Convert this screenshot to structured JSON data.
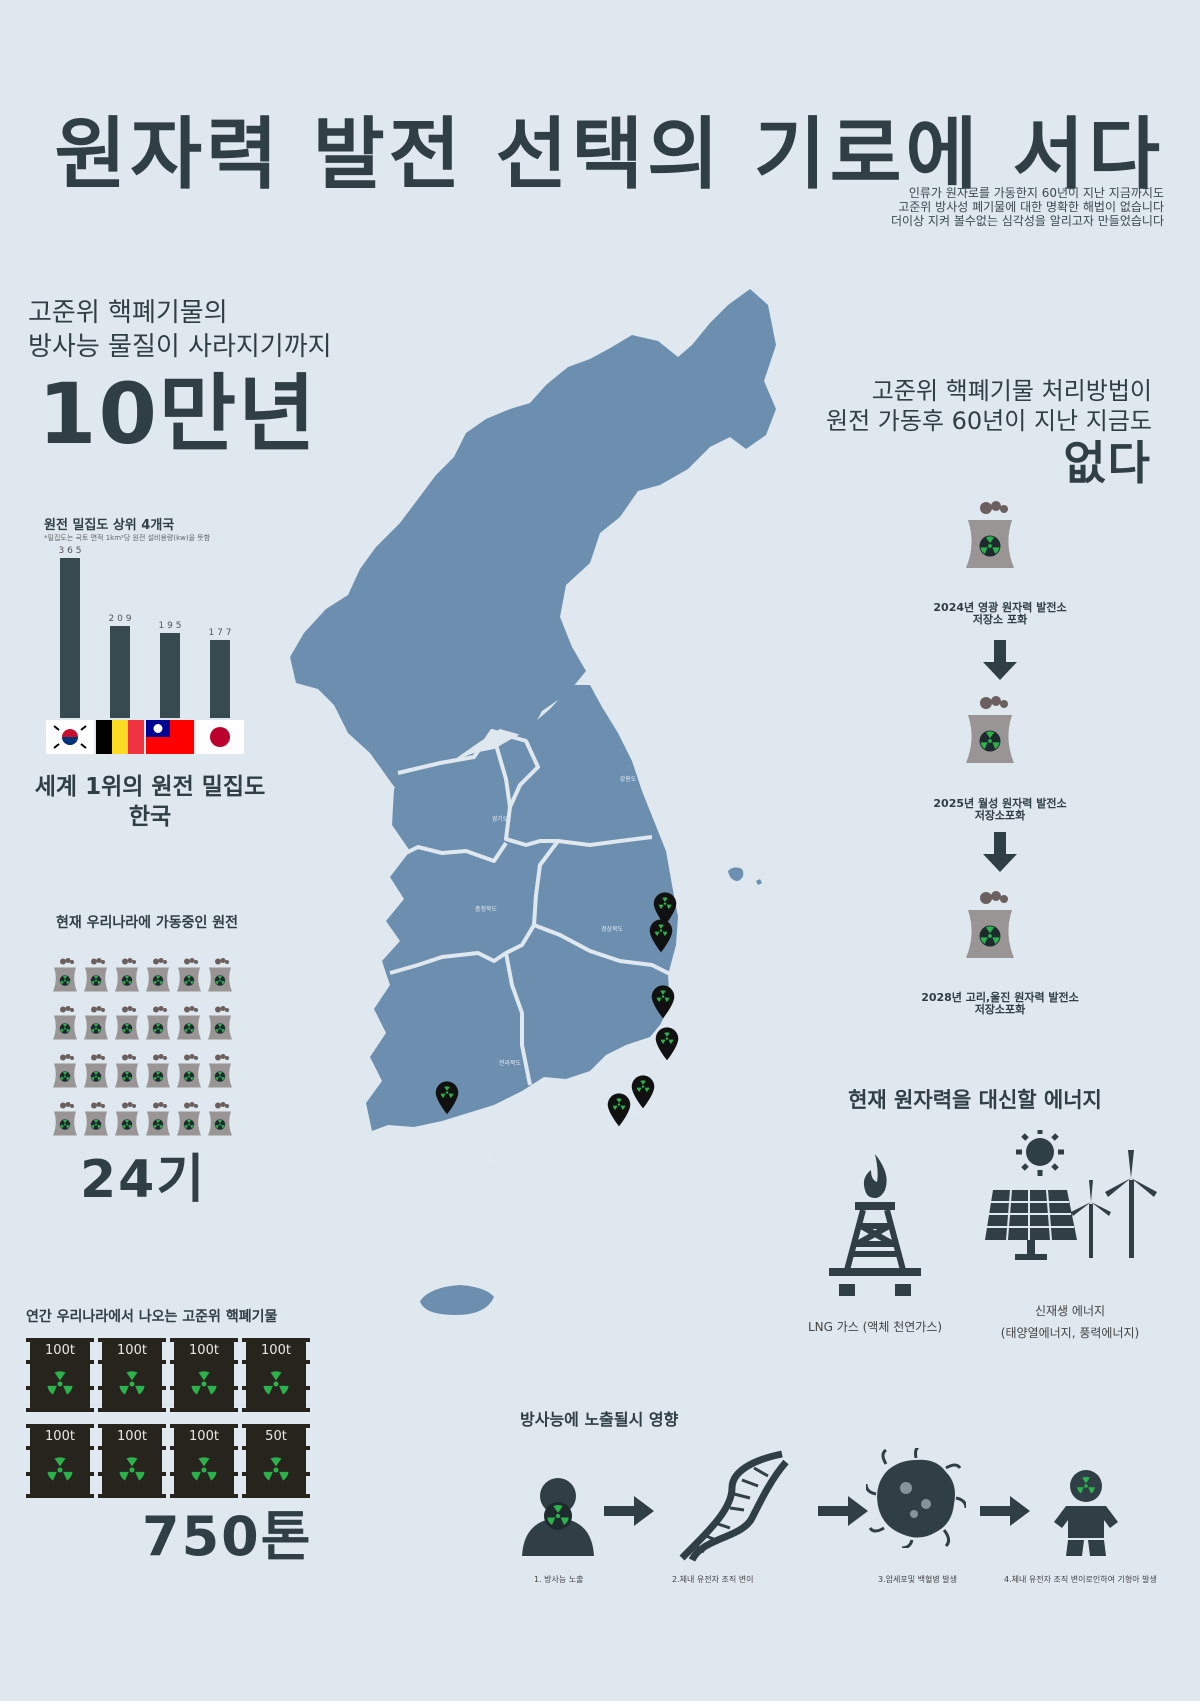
{
  "header": {
    "title": "원자력 발전 선택의 기로에 서다",
    "subtitle_lines": [
      "인류가 원자로를 가동한지 60년이 지난 지금까지도",
      "고준위 방사성 폐기물에 대한 명확한 해법이 없습니다",
      "더이상 지켜 볼수없는 심각성을 알리고자 만들었습니다"
    ]
  },
  "halflife": {
    "line1": "고준위 핵폐기물의",
    "line2": "방사능 물질이 사라지기까지",
    "value": "10만년"
  },
  "no_solution": {
    "line1": "고준위 핵폐기물 처리방법이",
    "line2": "원전 가동후 60년이 지난 지금도",
    "value": "없다"
  },
  "density": {
    "title": "원전 밀집도 상위 4개국",
    "note": "*밀집도는 국토 면적 1km²당 원전 설비용량(kw)을 뜻함",
    "headline_line1": "세계 1위의 원전 밀집도",
    "headline_line2": "한국",
    "chart_data": {
      "type": "bar",
      "categories": [
        "한국",
        "벨기에",
        "대만",
        "일본"
      ],
      "values": [
        365,
        209,
        195,
        177
      ],
      "ylim": [
        0,
        365
      ]
    }
  },
  "operating": {
    "title": "현재 우리나라에 가동중인 원전",
    "count": 24,
    "value": "24기"
  },
  "waste": {
    "title": "연간 우리나라에서 나오는 고준위 핵폐기물",
    "drums": [
      "100t",
      "100t",
      "100t",
      "100t",
      "100t",
      "100t",
      "100t",
      "50t"
    ],
    "value": "750톤"
  },
  "map": {
    "regions": [
      {
        "id": "gangwon",
        "label": "강원도"
      },
      {
        "id": "gyeonggi",
        "label": "경기도"
      },
      {
        "id": "chungcheong",
        "label": "충청북도"
      },
      {
        "id": "gyeongbuk",
        "label": "경상북도"
      },
      {
        "id": "jeonbuk",
        "label": "전라북도"
      },
      {
        "id": "gyeongnam",
        "label": "경상남도"
      },
      {
        "id": "jeonnam",
        "label": "전라남도"
      }
    ],
    "map_color": "#6c8faf"
  },
  "timeline": {
    "items": [
      {
        "line1": "2024년 영광 원자력 발전소",
        "line2": "저장소 포화"
      },
      {
        "line1": "2025년 월성 원자력 발전소",
        "line2": "저장소포화"
      },
      {
        "line1": "2028년 고리,울진 원자력 발전소",
        "line2": "저장소포화"
      }
    ]
  },
  "alternatives": {
    "title": "현재 원자력을 대신할 에너지",
    "lng_label": "LNG 가스 (액체 천연가스)",
    "renew_line1": "신재생 에너지",
    "renew_line2": "(태양열에너지, 풍력에너지)"
  },
  "effects": {
    "title": "방사능에 노출될시 영향",
    "steps": [
      "1. 방사능 노출",
      "2.체내 유전자 조직 변이",
      "3.암세포및 백혈병 발생",
      "4.체내 유전자 조직 변이로인하여 기형아 발생"
    ]
  },
  "colors": {
    "dark": "#2f3f45",
    "background": "#dfe7ef",
    "map": "#6c8faf",
    "radiation_green": "#2bb24c",
    "tower_gray": "#999595"
  }
}
